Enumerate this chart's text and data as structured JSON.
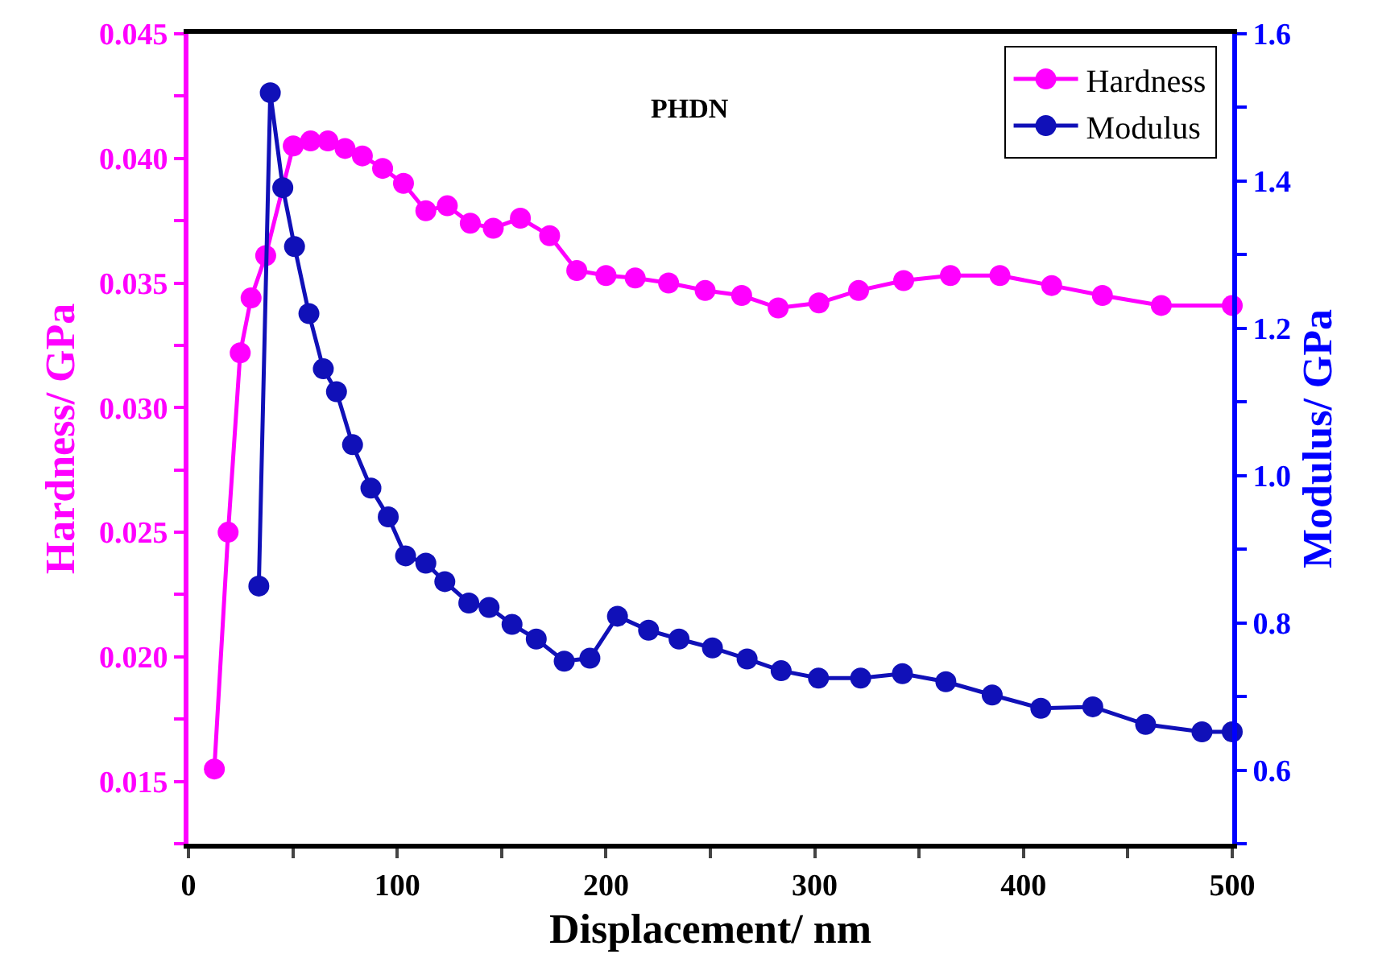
{
  "chart_data": {
    "type": "line",
    "xlabel": "Displacement/ nm",
    "ylabel": "Hardness/ GPa",
    "y2label": "Modulus/ GPa",
    "annotations": [
      "PHDN"
    ],
    "xlim": [
      0,
      500
    ],
    "xticks": [
      0,
      {
        "value": 50,
        "label": null
      },
      100,
      {
        "value": 150,
        "label": null
      },
      200,
      {
        "value": 250,
        "label": null
      },
      300,
      {
        "value": 350,
        "label": null
      },
      400,
      {
        "value": 450,
        "label": null
      },
      500
    ],
    "ylim": [
      0.0125,
      0.045
    ],
    "yticks": [
      {
        "value": 0.0125,
        "label": null
      },
      0.015,
      {
        "value": 0.0175,
        "label": null
      },
      {
        "value": 0.02,
        "label": "0.020"
      },
      {
        "value": 0.0225,
        "label": null
      },
      0.025,
      {
        "value": 0.0275,
        "label": null
      },
      {
        "value": 0.03,
        "label": "0.030"
      },
      {
        "value": 0.0325,
        "label": null
      },
      0.035,
      {
        "value": 0.0375,
        "label": null
      },
      {
        "value": 0.04,
        "label": "0.040"
      },
      {
        "value": 0.0425,
        "label": null
      },
      0.045
    ],
    "y2lim": [
      0.5,
      1.6
    ],
    "y2ticks": [
      {
        "value": 0.5,
        "label": null
      },
      0.6,
      {
        "value": 0.7,
        "label": null
      },
      0.8,
      {
        "value": 0.9,
        "label": null
      },
      {
        "value": 1.0,
        "label": "1.0"
      },
      {
        "value": 1.1,
        "label": null
      },
      1.2,
      {
        "value": 1.3,
        "label": null
      },
      1.4,
      {
        "value": 1.5,
        "label": null
      },
      1.6
    ],
    "marker": "circle",
    "line_style": "solid",
    "legend": "top right",
    "series": [
      {
        "name": "Hardness",
        "color": "#ff00ff",
        "x": [
          12.4,
          19,
          24.8,
          30,
          37,
          50.2,
          58.5,
          66.8,
          75,
          83.3,
          93,
          103,
          113.7,
          124,
          135,
          146,
          159,
          173,
          186,
          200,
          214,
          230,
          247.5,
          265,
          282.5,
          302,
          321,
          342.6,
          365,
          388.7,
          413.5,
          437.8,
          466,
          500
        ],
        "values": [
          0.0155,
          0.025,
          0.0322,
          0.0344,
          0.0361,
          0.0405,
          0.0407,
          0.0407,
          0.0404,
          0.0401,
          0.0396,
          0.039,
          0.0379,
          0.0381,
          0.0374,
          0.0372,
          0.0376,
          0.0369,
          0.0355,
          0.0353,
          0.0352,
          0.035,
          0.0347,
          0.0345,
          0.034,
          0.0342,
          0.0347,
          0.0351,
          0.0353,
          0.0353,
          0.0349,
          0.0345,
          0.0341,
          0.0341
        ]
      },
      {
        "name": "Modulus",
        "color": "#1010b8",
        "axis": "y2",
        "x": [
          33.7,
          39.2,
          45.2,
          50.8,
          57.7,
          64.6,
          70.9,
          78.6,
          87.4,
          95.7,
          104,
          113.7,
          122.8,
          134.3,
          144,
          155,
          166.6,
          180,
          192.3,
          205.5,
          220.4,
          235,
          251,
          267.6,
          283.9,
          301.8,
          322,
          342,
          362.8,
          385,
          408.3,
          433.2,
          458.5,
          485.5,
          500
        ],
        "values": [
          0.85,
          1.52,
          1.391,
          1.311,
          1.22,
          1.145,
          1.114,
          1.042,
          0.983,
          0.944,
          0.891,
          0.881,
          0.856,
          0.827,
          0.821,
          0.798,
          0.778,
          0.748,
          0.752,
          0.809,
          0.79,
          0.778,
          0.766,
          0.751,
          0.735,
          0.725,
          0.725,
          0.731,
          0.72,
          0.702,
          0.684,
          0.686,
          0.662,
          0.652,
          0.652
        ]
      }
    ]
  }
}
